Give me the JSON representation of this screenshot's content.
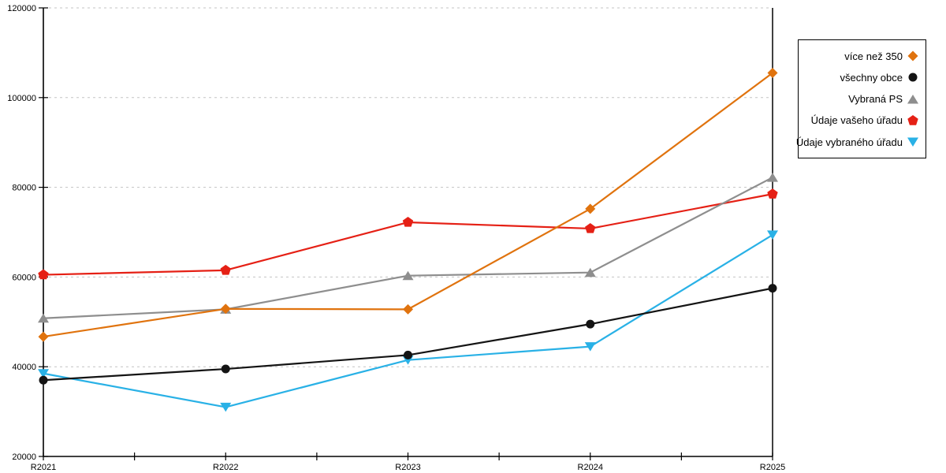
{
  "chart_data": {
    "type": "line",
    "title": "",
    "xlabel": "",
    "ylabel": "",
    "x_labels": [
      "R2021",
      "R2022",
      "R2023",
      "R2024",
      "R2025"
    ],
    "y_ticks": [
      20000,
      40000,
      60000,
      80000,
      100000,
      120000
    ],
    "ylim": [
      20000,
      120000
    ],
    "grid": "horizontal-dashed",
    "legend_position": "right",
    "series": [
      {
        "name": "více než 350",
        "marker": "diamond",
        "color": "#e0730e",
        "values": [
          46700,
          52900,
          52800,
          75200,
          105500
        ]
      },
      {
        "name": "všechny obce",
        "marker": "circle",
        "color": "#141414",
        "values": [
          37000,
          39500,
          42600,
          49500,
          57500
        ]
      },
      {
        "name": "Vybraná PS",
        "marker": "triangle-up",
        "color": "#8e8e8e",
        "values": [
          50800,
          52800,
          60300,
          61000,
          82200
        ]
      },
      {
        "name": "Údaje vašeho úřadu",
        "marker": "pentagon",
        "color": "#e52015",
        "values": [
          60500,
          61500,
          72200,
          70800,
          78500
        ]
      },
      {
        "name": "Údaje vybraného úřadu",
        "marker": "triangle-down",
        "color": "#29b1e6",
        "values": [
          38500,
          31000,
          41500,
          44500,
          69400
        ]
      }
    ]
  },
  "colors": {
    "grid": "#c3c3c3",
    "axis": "#000000",
    "background": "#ffffff"
  }
}
